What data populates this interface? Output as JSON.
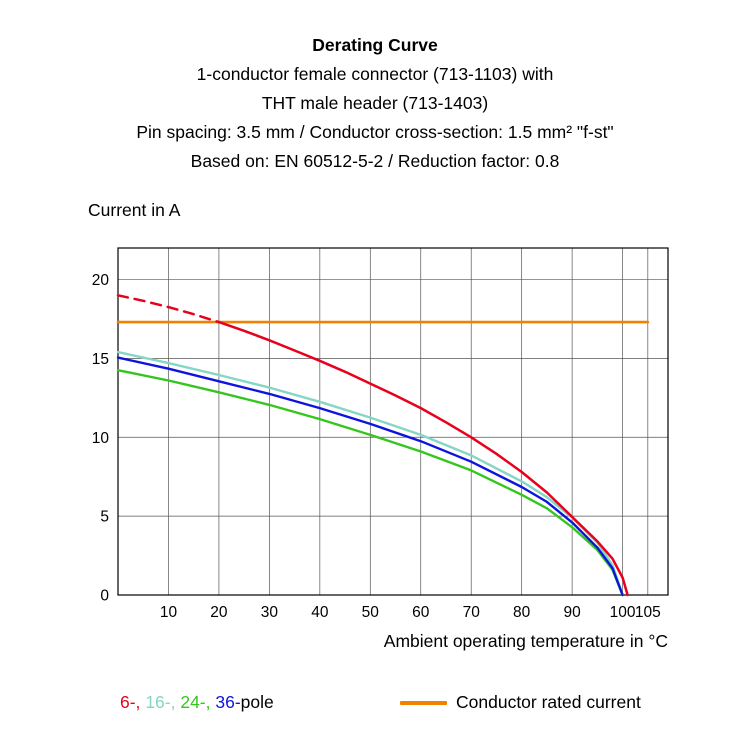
{
  "header": {
    "title": "Derating Curve",
    "subtitle_lines": [
      "1-conductor female connector (713-1103) with",
      "THT male header (713-1403)",
      "Pin spacing: 3.5 mm / Conductor cross-section: 1.5 mm² \"f-st\"",
      "Based on: EN 60512-5-2 / Reduction factor: 0.8"
    ]
  },
  "axes": {
    "y_label": "Current in A",
    "x_label": "Ambient operating temperature in °C"
  },
  "chart_data": {
    "type": "line",
    "title": "Derating Curve",
    "xlabel": "Ambient operating temperature in °C",
    "ylabel": "Current in A",
    "xlim": [
      0,
      109
    ],
    "ylim": [
      0,
      22
    ],
    "grid": true,
    "grid_color": "#555555",
    "ticks": {
      "x": [
        10,
        20,
        30,
        40,
        50,
        60,
        70,
        80,
        90,
        100,
        105
      ],
      "y": [
        0,
        5,
        10,
        15,
        20
      ]
    },
    "series": [
      {
        "name": "Conductor rated current",
        "color": "#f08200",
        "width": 2.6,
        "points": [
          [
            0,
            17.3
          ],
          [
            105,
            17.3
          ]
        ]
      },
      {
        "name": "16-pole",
        "color": "#85d6c5",
        "width": 2.4,
        "points": [
          [
            0,
            15.4
          ],
          [
            10,
            14.7
          ],
          [
            20,
            13.95
          ],
          [
            30,
            13.15
          ],
          [
            40,
            12.25
          ],
          [
            50,
            11.25
          ],
          [
            60,
            10.15
          ],
          [
            70,
            8.85
          ],
          [
            80,
            7.2
          ],
          [
            85,
            6.2
          ],
          [
            90,
            4.9
          ],
          [
            95,
            3.3
          ],
          [
            98,
            1.9
          ],
          [
            100,
            0
          ]
        ]
      },
      {
        "name": "24-pole",
        "color": "#35c61e",
        "width": 2.4,
        "points": [
          [
            0,
            14.25
          ],
          [
            10,
            13.6
          ],
          [
            20,
            12.85
          ],
          [
            30,
            12.05
          ],
          [
            40,
            11.15
          ],
          [
            50,
            10.15
          ],
          [
            60,
            9.1
          ],
          [
            70,
            7.9
          ],
          [
            80,
            6.35
          ],
          [
            85,
            5.5
          ],
          [
            90,
            4.3
          ],
          [
            95,
            2.85
          ],
          [
            98,
            1.6
          ],
          [
            100,
            0
          ]
        ]
      },
      {
        "name": "36-pole",
        "color": "#0f14dc",
        "width": 2.4,
        "points": [
          [
            0,
            15.05
          ],
          [
            10,
            14.35
          ],
          [
            20,
            13.55
          ],
          [
            30,
            12.75
          ],
          [
            40,
            11.85
          ],
          [
            50,
            10.85
          ],
          [
            60,
            9.75
          ],
          [
            70,
            8.45
          ],
          [
            80,
            6.85
          ],
          [
            85,
            5.9
          ],
          [
            90,
            4.6
          ],
          [
            95,
            3.0
          ],
          [
            98,
            1.7
          ],
          [
            100,
            0
          ]
        ]
      },
      {
        "name": "6-pole (above rated current)",
        "color": "#e8001c",
        "width": 2.5,
        "dash": true,
        "points": [
          [
            0,
            19.0
          ],
          [
            5,
            18.65
          ],
          [
            10,
            18.25
          ],
          [
            15,
            17.8
          ],
          [
            20,
            17.3
          ]
        ]
      },
      {
        "name": "6-pole",
        "color": "#e8001c",
        "width": 2.5,
        "points": [
          [
            20,
            17.3
          ],
          [
            25,
            16.75
          ],
          [
            30,
            16.15
          ],
          [
            35,
            15.5
          ],
          [
            40,
            14.85
          ],
          [
            45,
            14.15
          ],
          [
            50,
            13.4
          ],
          [
            55,
            12.65
          ],
          [
            60,
            11.85
          ],
          [
            65,
            10.95
          ],
          [
            70,
            10.0
          ],
          [
            75,
            8.95
          ],
          [
            80,
            7.8
          ],
          [
            85,
            6.5
          ],
          [
            90,
            4.95
          ],
          [
            95,
            3.4
          ],
          [
            98,
            2.3
          ],
          [
            100,
            1.1
          ],
          [
            101,
            0
          ]
        ]
      }
    ]
  },
  "legend": {
    "pole_parts": [
      {
        "text": "6-,",
        "color": "#e8001c"
      },
      {
        "text": "16-,",
        "color": "#85d6c5"
      },
      {
        "text": "24-,",
        "color": "#35c61e"
      },
      {
        "text": "36-",
        "color": "#0f14dc"
      },
      {
        "text": "pole",
        "color": "#000000"
      }
    ],
    "rated_label": "Conductor rated current",
    "rated_color": "#f08200"
  }
}
